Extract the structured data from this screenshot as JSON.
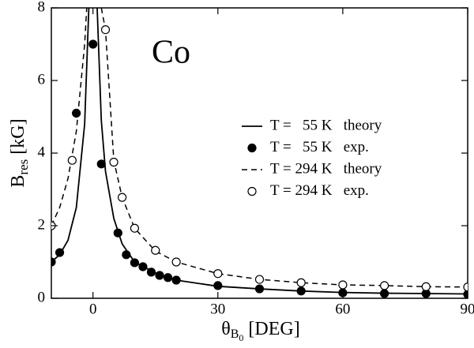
{
  "chart_data": {
    "type": "line",
    "annotation": "Co",
    "xlabel": {
      "main": "θ",
      "sub": "B",
      "subsub": "0",
      "unit": "[DEG]"
    },
    "ylabel": {
      "main": "B",
      "sub": "res",
      "unit": "[kG]"
    },
    "xlim": [
      -10,
      90
    ],
    "ylim": [
      0,
      8
    ],
    "xticks": [
      0,
      30,
      60,
      90
    ],
    "yticks": [
      0,
      2,
      4,
      6,
      8
    ],
    "legend": "upper right",
    "series": [
      {
        "name": "T =   55 K   theory",
        "color": "#000000",
        "style": "solid",
        "x": [
          -10,
          -8,
          -6,
          -4,
          -2,
          -1,
          0,
          1,
          2,
          3,
          5,
          7,
          10,
          15,
          20,
          30,
          40,
          50,
          60,
          70,
          80,
          90
        ],
        "values": [
          1.0,
          1.2,
          1.6,
          2.5,
          4.8,
          8,
          null,
          8,
          4.9,
          3.5,
          2.2,
          1.5,
          1.0,
          0.7,
          0.5,
          0.33,
          0.26,
          0.2,
          0.16,
          0.14,
          0.13,
          0.12
        ]
      },
      {
        "name": "T =   55 K   exp.",
        "color": "#000000",
        "style": "filled",
        "x": [
          -10,
          -8,
          -4,
          0,
          2,
          6,
          8,
          10,
          12,
          14,
          16,
          18,
          20,
          30,
          40,
          50,
          60,
          70,
          80,
          90
        ],
        "values": [
          1.0,
          1.26,
          5.1,
          7.0,
          3.7,
          1.8,
          1.2,
          0.98,
          0.87,
          0.72,
          0.63,
          0.57,
          0.5,
          0.35,
          0.26,
          0.2,
          0.15,
          0.13,
          0.13,
          0.11
        ]
      },
      {
        "name": "T = 294 K   theory",
        "color": "#000000",
        "style": "dashed",
        "x": [
          -10,
          -8,
          -6,
          -4,
          -2,
          -1.5,
          0,
          2,
          3,
          5,
          7,
          10,
          15,
          20,
          30,
          40,
          50,
          60,
          70,
          80,
          90
        ],
        "values": [
          2.0,
          2.5,
          3.3,
          4.6,
          7.0,
          8,
          null,
          8,
          7.4,
          3.8,
          2.78,
          1.93,
          1.3,
          1.0,
          0.68,
          0.52,
          0.43,
          0.37,
          0.35,
          0.32,
          0.31
        ]
      },
      {
        "name": "T = 294 K   exp.",
        "color": "#000000",
        "style": "open",
        "x": [
          -10,
          -5,
          3,
          5,
          7,
          10,
          15,
          20,
          30,
          40,
          50,
          60,
          70,
          80,
          90
        ],
        "values": [
          2.0,
          3.8,
          7.4,
          3.75,
          2.78,
          1.93,
          1.32,
          1.0,
          0.68,
          0.52,
          0.43,
          0.37,
          0.35,
          0.32,
          0.31
        ]
      }
    ]
  }
}
